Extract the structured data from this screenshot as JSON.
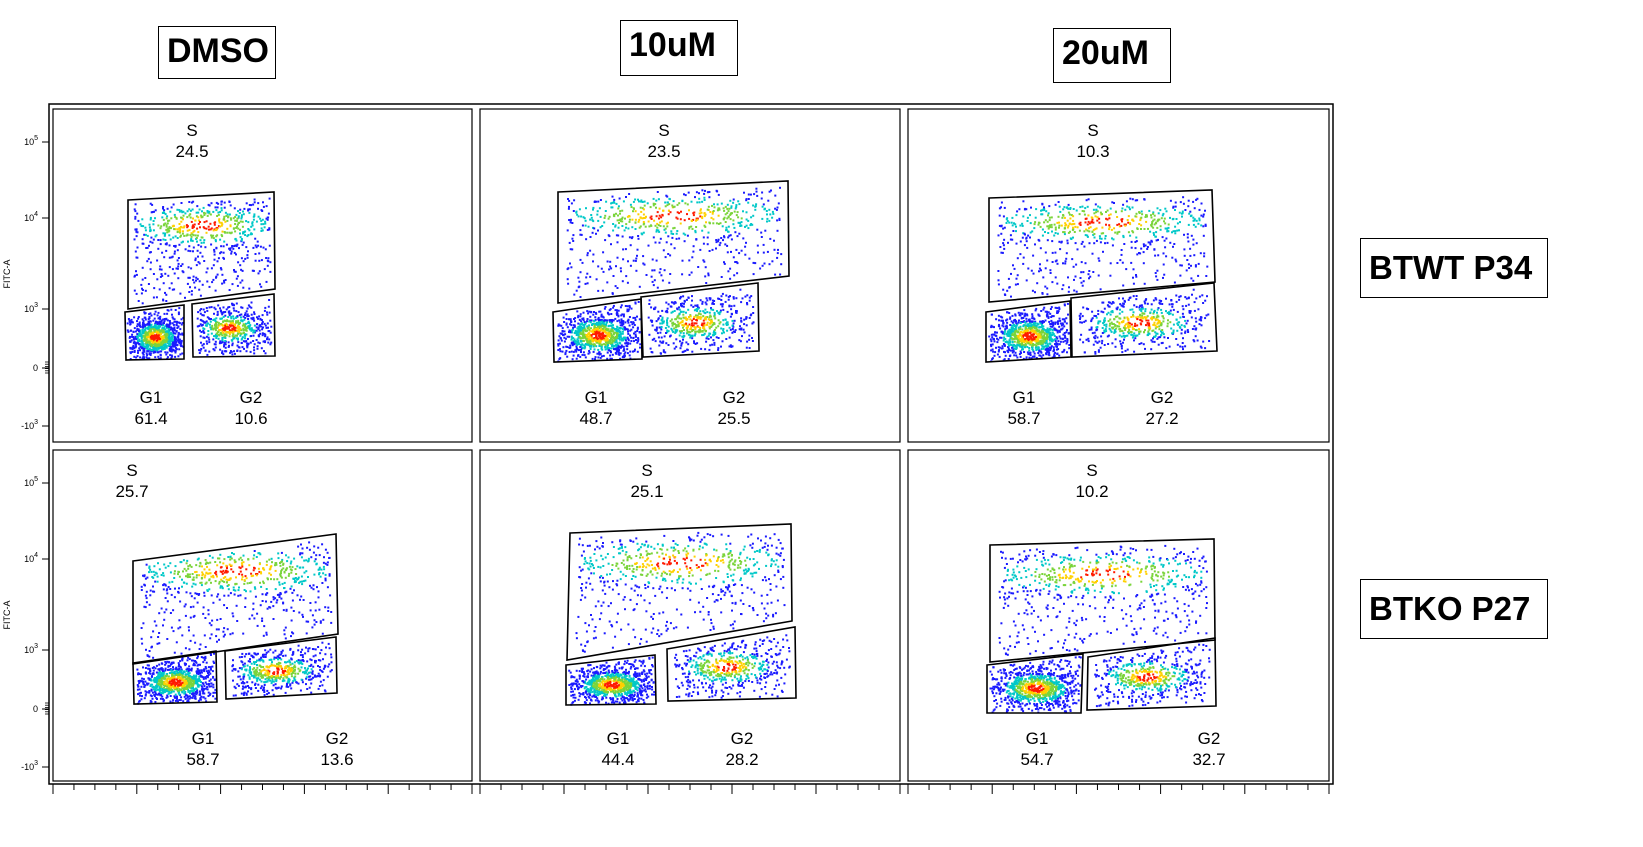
{
  "columns": [
    {
      "label": "DMSO"
    },
    {
      "label": "10uM"
    },
    {
      "label": "20uM"
    }
  ],
  "rows": [
    {
      "label": "BTWT P34"
    },
    {
      "label": "BTKO P27"
    }
  ],
  "colors": {
    "low": "#1a1aff",
    "mid": "#00c8c8",
    "high": "#7ad43a",
    "higher": "#ffd000",
    "peak": "#ff1a00"
  },
  "chart_data": {
    "type": "scatter",
    "ylabel": "FITC-A",
    "y_scale": "biexponential",
    "y_ticks": [
      {
        "label": "10",
        "exp": "5"
      },
      {
        "label": "10",
        "exp": "4"
      },
      {
        "label": "10",
        "exp": "3"
      },
      {
        "label": "0",
        "exp": ""
      },
      {
        "label": "-10",
        "exp": "3"
      }
    ],
    "gate_labels": {
      "s": "S",
      "g1": "G1",
      "g2": "G2"
    },
    "panels": [
      {
        "row": "BTWT P34",
        "column": "DMSO",
        "s": "24.5",
        "g1": "61.4",
        "g2": "10.6"
      },
      {
        "row": "BTWT P34",
        "column": "10uM",
        "s": "23.5",
        "g1": "48.7",
        "g2": "25.5"
      },
      {
        "row": "BTWT P34",
        "column": "20uM",
        "s": "10.3",
        "g1": "58.7",
        "g2": "27.2"
      },
      {
        "row": "BTKO P27",
        "column": "DMSO",
        "s": "25.7",
        "g1": "58.7",
        "g2": "13.6"
      },
      {
        "row": "BTKO P27",
        "column": "10uM",
        "s": "25.1",
        "g1": "44.4",
        "g2": "28.2"
      },
      {
        "row": "BTKO P27",
        "column": "20uM",
        "s": "10.2",
        "g1": "54.7",
        "g2": "32.7"
      }
    ]
  }
}
